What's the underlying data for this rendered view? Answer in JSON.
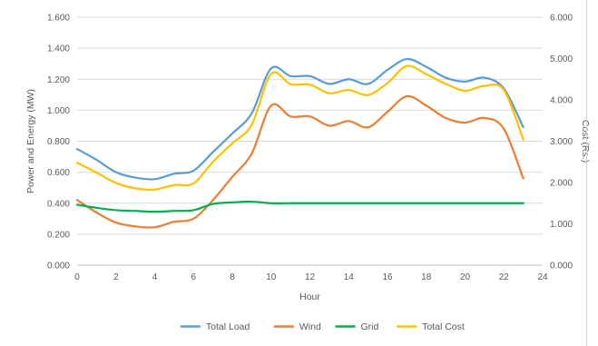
{
  "chart_data": {
    "type": "line",
    "title": "",
    "xlabel": "Hour",
    "ylabel": "Power and Energy (MW)",
    "y2label": "Cost (Rs.)",
    "xlim": [
      0,
      24
    ],
    "ylim": [
      0,
      1.6
    ],
    "y2lim": [
      0,
      6000
    ],
    "x_ticks": [
      "0",
      "2",
      "4",
      "6",
      "8",
      "10",
      "12",
      "14",
      "16",
      "18",
      "20",
      "22",
      "24"
    ],
    "y_ticks": [
      "0.000",
      "0.200",
      "0.400",
      "0.600",
      "0.800",
      "1.000",
      "1.200",
      "1.400",
      "1.600"
    ],
    "y2_ticks": [
      "0.000",
      "1.000",
      "2.000",
      "3.000",
      "4.000",
      "5.000",
      "6.000"
    ],
    "grid": "horizontal",
    "legend_position": "bottom",
    "x": [
      0,
      1,
      2,
      3,
      4,
      5,
      6,
      7,
      8,
      9,
      10,
      11,
      12,
      13,
      14,
      15,
      16,
      17,
      18,
      19,
      20,
      21,
      22,
      23
    ],
    "series": [
      {
        "name": "Total Load",
        "axis": "left",
        "color": "#5b9bd5",
        "values": [
          0.75,
          0.68,
          0.6,
          0.565,
          0.555,
          0.59,
          0.61,
          0.73,
          0.85,
          0.98,
          1.27,
          1.22,
          1.22,
          1.17,
          1.2,
          1.17,
          1.26,
          1.33,
          1.28,
          1.21,
          1.185,
          1.21,
          1.14,
          0.89
        ]
      },
      {
        "name": "Wind",
        "axis": "left",
        "color": "#ed7d31",
        "values": [
          0.42,
          0.34,
          0.275,
          0.25,
          0.245,
          0.28,
          0.3,
          0.42,
          0.57,
          0.72,
          1.03,
          0.96,
          0.96,
          0.9,
          0.93,
          0.89,
          0.99,
          1.09,
          1.03,
          0.95,
          0.92,
          0.95,
          0.88,
          0.56
        ]
      },
      {
        "name": "Grid",
        "axis": "left",
        "color": "#00b050",
        "values": [
          0.39,
          0.37,
          0.355,
          0.35,
          0.345,
          0.35,
          0.355,
          0.395,
          0.405,
          0.41,
          0.4,
          0.4,
          0.4,
          0.4,
          0.4,
          0.4,
          0.4,
          0.4,
          0.4,
          0.4,
          0.4,
          0.4,
          0.4,
          0.4
        ]
      },
      {
        "name": "Total Cost",
        "axis": "right",
        "color": "#ffc000",
        "values": [
          2480,
          2240,
          1990,
          1860,
          1830,
          1940,
          1980,
          2500,
          2950,
          3400,
          4630,
          4380,
          4370,
          4160,
          4240,
          4120,
          4410,
          4820,
          4620,
          4390,
          4220,
          4340,
          4240,
          3040
        ]
      }
    ]
  }
}
